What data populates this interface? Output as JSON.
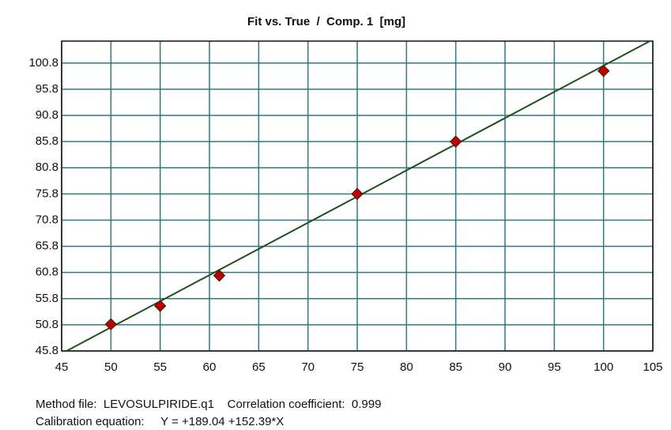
{
  "chart_data": {
    "type": "scatter",
    "title": "Fit vs. True  /  Comp. 1  [mg]",
    "x": [
      50,
      55,
      61,
      75,
      85,
      100
    ],
    "values": [
      50.9,
      54.4,
      60.2,
      75.8,
      85.8,
      99.3
    ],
    "color": "#c00000",
    "fit_line": {
      "x": [
        45.5,
        104.7
      ],
      "y": [
        45.8,
        105
      ],
      "color": "#1f4f1f"
    },
    "xlim": [
      45,
      105
    ],
    "xticks": [
      45,
      50,
      55,
      60,
      65,
      70,
      75,
      80,
      85,
      90,
      95,
      100,
      105
    ],
    "ylim": [
      45.8,
      105
    ],
    "yticks": [
      45.8,
      50.8,
      55.8,
      60.8,
      65.8,
      70.8,
      75.8,
      80.8,
      85.8,
      90.8,
      95.8,
      100.8
    ],
    "grid": true,
    "grid_color": "#2f7a7a",
    "annotations": [
      "Method file:  LEVOSULPIRIDE.q1    Correlation coefficient:  0.999",
      "Calibration equation:     Y = +189.04 +152.39*X"
    ]
  }
}
